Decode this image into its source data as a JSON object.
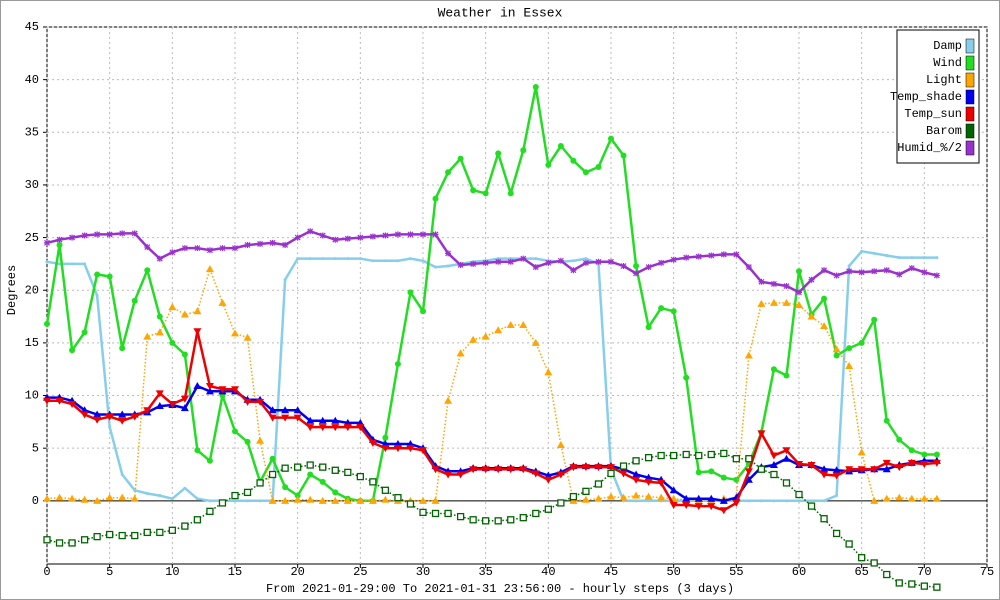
{
  "chart_data": {
    "type": "line",
    "title": "Weather in Essex",
    "xlabel": "From 2021-01-29:00 To 2021-01-31 23:56:00 - hourly steps (3 days)",
    "ylabel": "Degrees",
    "x": [
      0,
      1,
      2,
      3,
      4,
      5,
      6,
      7,
      8,
      9,
      10,
      11,
      12,
      13,
      14,
      15,
      16,
      17,
      18,
      19,
      20,
      21,
      22,
      23,
      24,
      25,
      26,
      27,
      28,
      29,
      30,
      31,
      32,
      33,
      34,
      35,
      36,
      37,
      38,
      39,
      40,
      41,
      42,
      43,
      44,
      45,
      46,
      47,
      48,
      49,
      50,
      51,
      52,
      53,
      54,
      55,
      56,
      57,
      58,
      59,
      60,
      61,
      62,
      63,
      64,
      65,
      66,
      67,
      68,
      69,
      70,
      71
    ],
    "xlim": [
      0,
      75
    ],
    "xticks": [
      0,
      5,
      10,
      15,
      20,
      25,
      30,
      35,
      40,
      45,
      50,
      55,
      60,
      65,
      70,
      75
    ],
    "ylim": [
      -6,
      45
    ],
    "yticks": [
      0,
      5,
      10,
      15,
      20,
      25,
      30,
      35,
      40,
      45
    ],
    "grid": true,
    "legend": "upper right",
    "series": [
      {
        "name": "Damp",
        "color": "#87ceeb",
        "marker": "dot",
        "linestyle": "solid",
        "values": [
          22.7,
          22.5,
          22.5,
          22.5,
          19.5,
          7,
          2.5,
          1,
          0.7,
          0.5,
          0.2,
          1.2,
          0.2,
          0,
          0,
          0,
          0,
          0,
          0,
          21,
          23,
          23,
          23,
          23,
          23,
          23,
          22.8,
          22.8,
          22.8,
          23,
          22.8,
          22.2,
          22.3,
          22.5,
          22.7,
          22.8,
          23,
          23,
          23,
          23,
          22.8,
          22.7,
          22.8,
          23,
          22.5,
          3,
          0,
          0,
          0,
          0,
          0,
          0,
          0,
          0,
          0,
          0,
          0,
          0,
          0,
          0,
          0,
          0,
          0,
          0.5,
          22.3,
          23.7,
          23.5,
          23.3,
          23.1,
          23.1,
          23.1,
          23.1
        ]
      },
      {
        "name": "Wind",
        "color": "#22dd22",
        "marker": "circle",
        "linestyle": "solid",
        "values": [
          16.8,
          24.3,
          14.3,
          16,
          21.5,
          21.3,
          14.5,
          19,
          21.9,
          17.5,
          15,
          13.9,
          4.8,
          3.8,
          10,
          6.6,
          5.6,
          1.8,
          4,
          1.3,
          0.5,
          2.5,
          1.8,
          0.8,
          0.2,
          0,
          0,
          6,
          13,
          19.8,
          18,
          28.7,
          31.2,
          32.5,
          29.5,
          29.2,
          33,
          29.2,
          33.3,
          39.3,
          31.9,
          33.7,
          32.3,
          31.2,
          31.7,
          34.4,
          32.8,
          22.3,
          16.5,
          18.3,
          18,
          11.7,
          2.7,
          2.8,
          2.2,
          2,
          3.5,
          6.5,
          12.5,
          11.9,
          21.8,
          17.7,
          19.2,
          13.8,
          14.5,
          15,
          17.2,
          7.6,
          5.8,
          4.8,
          4.4,
          4.4
        ]
      },
      {
        "name": "Light",
        "color": "#ffa500",
        "marker": "triangle",
        "linestyle": "dotted",
        "values": [
          0.2,
          0.3,
          0.2,
          0.1,
          0,
          0.3,
          0.3,
          0.2,
          15.6,
          16,
          18.4,
          17.7,
          18,
          22,
          18.8,
          15.9,
          15.5,
          5.7,
          0,
          0,
          0.1,
          0.1,
          0,
          0,
          0,
          0,
          0,
          0.1,
          0,
          0,
          0,
          0,
          9.5,
          14,
          15.3,
          15.6,
          16.2,
          16.7,
          16.7,
          15,
          12.2,
          5.3,
          0,
          0.1,
          0.2,
          0.4,
          0.3,
          0.5,
          0.4,
          0.3,
          0.2,
          0.1,
          0,
          0,
          0.2,
          0.3,
          13.8,
          18.7,
          18.8,
          18.8,
          18.6,
          17.5,
          16.6,
          14.4,
          12.8,
          4.6,
          0,
          0.2,
          0.3,
          0.2,
          0.2,
          0.2
        ]
      },
      {
        "name": "Temp_shade",
        "color": "#0000ee",
        "marker": "triangle",
        "linestyle": "solid",
        "values": [
          9.8,
          9.8,
          9.5,
          8.6,
          8.2,
          8.2,
          8.2,
          8.2,
          8.4,
          9,
          9.1,
          8.8,
          10.9,
          10.4,
          10.4,
          10.4,
          9.6,
          9.6,
          8.6,
          8.6,
          8.6,
          7.6,
          7.6,
          7.6,
          7.4,
          7.4,
          5.8,
          5.4,
          5.4,
          5.4,
          5,
          3.3,
          2.8,
          2.8,
          3.1,
          3.1,
          3.1,
          3.1,
          3.1,
          2.8,
          2.4,
          2.7,
          3.3,
          3.3,
          3.3,
          3.3,
          3,
          2.5,
          2.2,
          2,
          1,
          0.2,
          0.2,
          0.2,
          0,
          0.3,
          2,
          3.2,
          3.4,
          4,
          3.4,
          3.4,
          3,
          2.9,
          2.8,
          2.9,
          3,
          3,
          3.4,
          3.6,
          3.8,
          3.8
        ]
      },
      {
        "name": "Temp_sun",
        "color": "#ee0000",
        "marker": "triangle-down",
        "linestyle": "solid",
        "values": [
          9.5,
          9.5,
          9.2,
          8.2,
          7.7,
          8,
          7.6,
          8,
          8.6,
          10.2,
          9.2,
          9.7,
          16.1,
          10.9,
          10.6,
          10.6,
          9.4,
          9.4,
          7.9,
          7.9,
          7.9,
          7,
          7,
          7,
          7,
          7,
          5.5,
          5,
          5,
          5,
          4.8,
          3,
          2.5,
          2.5,
          3,
          3,
          3,
          3,
          3,
          2.6,
          2,
          2.5,
          3.2,
          3.2,
          3.2,
          3.2,
          2.6,
          2,
          1.8,
          1.7,
          -0.4,
          -0.4,
          -0.5,
          -0.5,
          -0.9,
          -0.2,
          2.8,
          6.4,
          4.3,
          4.8,
          3.5,
          3.4,
          2.5,
          2.4,
          3,
          3,
          3,
          3.6,
          3.2,
          3.6,
          3.5,
          3.6
        ]
      },
      {
        "name": "Barom",
        "color": "#006400",
        "marker": "square",
        "linestyle": "dotted",
        "values": [
          -3.7,
          -4,
          -4,
          -3.7,
          -3.4,
          -3.2,
          -3.3,
          -3.3,
          -3,
          -3,
          -2.8,
          -2.4,
          -1.8,
          -1,
          -0.2,
          0.5,
          0.8,
          1.7,
          2.5,
          3.1,
          3.2,
          3.4,
          3.2,
          2.9,
          2.7,
          2.3,
          1.8,
          1,
          0.3,
          -0.3,
          -1.1,
          -1.2,
          -1.2,
          -1.5,
          -1.8,
          -1.9,
          -1.9,
          -1.8,
          -1.6,
          -1.2,
          -0.8,
          -0.2,
          0.4,
          0.9,
          1.6,
          2.6,
          3.3,
          3.8,
          4.1,
          4.3,
          4.3,
          4.4,
          4.3,
          4.4,
          4.5,
          4,
          4,
          3,
          2.5,
          1.7,
          0.6,
          -0.5,
          -1.7,
          -3.1,
          -4.1,
          -5.4,
          -5.9,
          -7,
          -7.8,
          -7.9,
          -8.1,
          -8.2
        ]
      },
      {
        "name": "Humid_%/2",
        "color": "#9932cc",
        "marker": "star",
        "linestyle": "solid",
        "values": [
          24.5,
          24.8,
          25,
          25.2,
          25.3,
          25.3,
          25.4,
          25.4,
          24.1,
          23,
          23.6,
          24,
          24,
          23.8,
          24,
          24,
          24.3,
          24.4,
          24.5,
          24.3,
          25,
          25.6,
          25.2,
          24.8,
          24.9,
          25,
          25.1,
          25.2,
          25.3,
          25.3,
          25.3,
          25.3,
          23.5,
          22.4,
          22.5,
          22.6,
          22.7,
          22.7,
          23,
          22.2,
          22.6,
          22.8,
          21.9,
          22.6,
          22.7,
          22.7,
          22.3,
          21.6,
          22.2,
          22.6,
          22.9,
          23.1,
          23.2,
          23.3,
          23.4,
          23.4,
          22.2,
          20.8,
          20.6,
          20.4,
          19.8,
          21,
          21.9,
          21.4,
          21.8,
          21.7,
          21.8,
          21.9,
          21.5,
          22.1,
          21.7,
          21.4
        ]
      }
    ]
  }
}
